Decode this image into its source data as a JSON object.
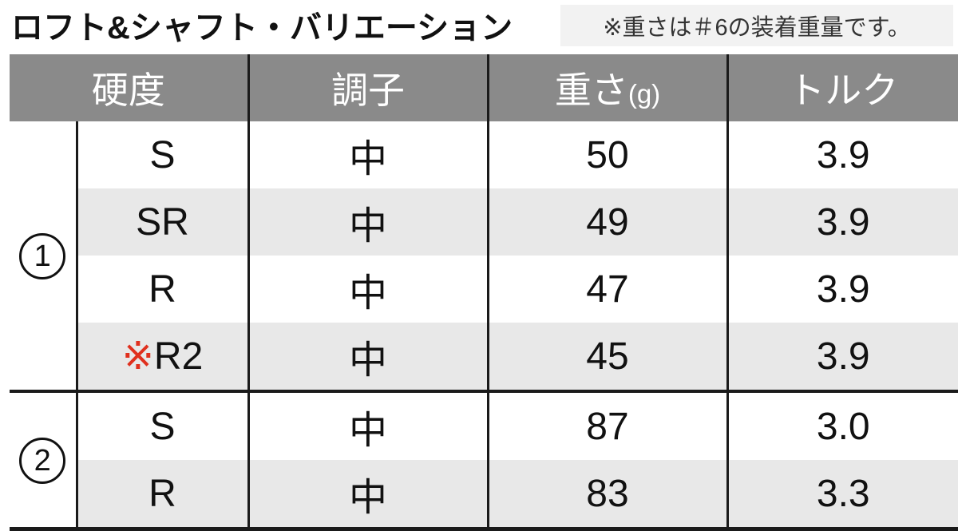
{
  "title": "ロフト&シャフト・バリエーション",
  "note": "※重さは＃6の装着重量です。",
  "colors": {
    "header_bg": "#8a8a8a",
    "header_text": "#ffffff",
    "alt_row_bg": "#e8e8e8",
    "note_bg": "#f2f2f2",
    "marker_red": "#e0301e",
    "border": "#1a1a1a"
  },
  "table": {
    "headers": {
      "hardness": "硬度",
      "kick": "調子",
      "weight": "重さ",
      "weight_unit": "(g)",
      "torque": "トルク"
    },
    "groups": [
      {
        "label": "1",
        "label_glyph": "①",
        "rows": [
          {
            "flex": "S",
            "kick": "中",
            "weight": "50",
            "torque": "3.9"
          },
          {
            "flex": "SR",
            "kick": "中",
            "weight": "49",
            "torque": "3.9"
          },
          {
            "flex": "R",
            "kick": "中",
            "weight": "47",
            "torque": "3.9"
          },
          {
            "flex_prefix": "※",
            "flex": "R2",
            "kick": "中",
            "weight": "45",
            "torque": "3.9"
          }
        ]
      },
      {
        "label": "2",
        "label_glyph": "②",
        "rows": [
          {
            "flex": "S",
            "kick": "中",
            "weight": "87",
            "torque": "3.0"
          },
          {
            "flex": "R",
            "kick": "中",
            "weight": "83",
            "torque": "3.3"
          }
        ]
      }
    ]
  }
}
